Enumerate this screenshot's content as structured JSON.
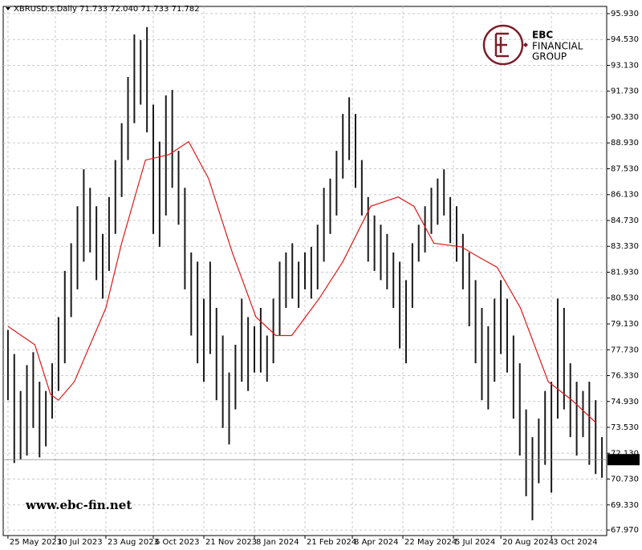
{
  "chart_data": {
    "type": "ohlc",
    "header": "XBRUSD.s.Daily  71.733 72.040 71.733 71.782",
    "bar_color": "#1a1a1a",
    "high": [
      78.8,
      77.5,
      75.5,
      76.9,
      77.6,
      76.0,
      75.5,
      77.0,
      79.5,
      82.0,
      83.5,
      85.5,
      87.5,
      86.5,
      85.5,
      84.0,
      86.0,
      88.0,
      90.0,
      92.5,
      94.8,
      94.5,
      95.2,
      91.0,
      89.0,
      91.5,
      91.8,
      88.5,
      86.5,
      83.0,
      82.5,
      80.5,
      82.5,
      80.0,
      78.5,
      76.5,
      78.0,
      80.5,
      79.5,
      79.0,
      80.0,
      78.5,
      80.5,
      82.5,
      83.0,
      83.5,
      82.5,
      83.0,
      83.3,
      84.5,
      86.5,
      87.0,
      88.5,
      90.5,
      91.4,
      90.5,
      88.0,
      86.0,
      85.0,
      84.5,
      84.0,
      83.0,
      82.5,
      81.5,
      83.5,
      84.5,
      85.5,
      86.5,
      87.0,
      87.5,
      86.0,
      85.5,
      84.0,
      83.0,
      81.5,
      80.0,
      79.0,
      80.5,
      81.5,
      80.5,
      78.5,
      77.0,
      74.5,
      73.0,
      74.0,
      75.5,
      76.0,
      80.5,
      80.0,
      77.0,
      76.0,
      75.5,
      76.0,
      75.0,
      73.0
    ],
    "low": [
      75.0,
      71.6,
      71.8,
      72.0,
      73.5,
      71.9,
      72.5,
      74.0,
      75.5,
      77.0,
      79.5,
      81.0,
      82.5,
      83.0,
      81.5,
      80.5,
      82.0,
      84.0,
      86.0,
      88.0,
      90.0,
      91.0,
      89.5,
      84.0,
      83.3,
      85.0,
      86.5,
      84.5,
      81.0,
      78.5,
      77.0,
      76.0,
      77.5,
      75.0,
      73.5,
      72.6,
      74.5,
      76.0,
      75.5,
      76.5,
      76.5,
      76.0,
      77.0,
      78.5,
      80.0,
      80.5,
      80.0,
      81.0,
      80.5,
      81.0,
      82.5,
      84.0,
      85.0,
      87.0,
      88.0,
      86.5,
      85.0,
      82.5,
      82.0,
      81.5,
      81.0,
      80.0,
      77.8,
      77.0,
      80.0,
      82.5,
      83.0,
      84.0,
      84.5,
      85.0,
      83.5,
      82.5,
      81.0,
      79.0,
      77.0,
      75.0,
      74.5,
      76.0,
      77.5,
      76.5,
      74.0,
      72.0,
      69.8,
      68.5,
      70.5,
      71.5,
      70.0,
      74.0,
      74.5,
      73.0,
      72.0,
      73.0,
      71.5,
      71.0,
      70.8
    ],
    "ma": {
      "color": "#e01818",
      "x": [
        0,
        4.25,
        6.75,
        8,
        10.5,
        15.5,
        18,
        21.75,
        25.5,
        28.6,
        31.75,
        35.5,
        39.25,
        42.4,
        44.9,
        49.25,
        53,
        57.4,
        61.75,
        64.25,
        67.4,
        71.75,
        74.25,
        77.4,
        81.1,
        85.5,
        89.25,
        93
      ],
      "values": [
        79.0,
        78.0,
        75.3,
        75.0,
        76.0,
        80.0,
        83.5,
        88.0,
        88.3,
        89.0,
        87.0,
        83.0,
        79.5,
        78.5,
        78.5,
        80.5,
        82.5,
        85.5,
        86.0,
        85.5,
        83.5,
        83.3,
        82.8,
        82.2,
        80.0,
        76.0,
        75.0,
        73.8
      ]
    },
    "last_price": 71.782,
    "xlim": [
      -0.75,
      94.75
    ],
    "ylim": [
      67.67,
      96.32
    ],
    "yticks": [
      {
        "value": 95.93,
        "label": "95.930"
      },
      {
        "value": 94.53,
        "label": "94.530"
      },
      {
        "value": 93.13,
        "label": "93.130"
      },
      {
        "value": 91.73,
        "label": "91.730"
      },
      {
        "value": 90.33,
        "label": "90.330"
      },
      {
        "value": 88.93,
        "label": "88.930"
      },
      {
        "value": 87.53,
        "label": "87.530"
      },
      {
        "value": 86.13,
        "label": "86.130"
      },
      {
        "value": 84.73,
        "label": "84.730"
      },
      {
        "value": 83.33,
        "label": "83.330"
      },
      {
        "value": 81.93,
        "label": "81.930"
      },
      {
        "value": 80.53,
        "label": "80.530"
      },
      {
        "value": 79.13,
        "label": "79.130"
      },
      {
        "value": 77.73,
        "label": "77.730"
      },
      {
        "value": 76.33,
        "label": "76.330"
      },
      {
        "value": 74.93,
        "label": "74.930"
      },
      {
        "value": 73.53,
        "label": "73.530"
      },
      {
        "value": 72.13,
        "label": "72.130"
      },
      {
        "value": 70.73,
        "label": "70.730"
      },
      {
        "value": 69.33,
        "label": "69.330"
      },
      {
        "value": 67.97,
        "label": "67.970"
      }
    ],
    "xticks": [
      {
        "value": 0,
        "label": "25 May 2023"
      },
      {
        "value": 7.5,
        "label": "10 Jul 2023"
      },
      {
        "value": 15.5,
        "label": "23 Aug 2023"
      },
      {
        "value": 23,
        "label": "6 Oct 2023"
      },
      {
        "value": 31,
        "label": "21 Nov 2023"
      },
      {
        "value": 39,
        "label": "8 Jan 2024"
      },
      {
        "value": 47,
        "label": "21 Feb 2024"
      },
      {
        "value": 54.5,
        "label": "8 Apr 2024"
      },
      {
        "value": 62.5,
        "label": "22 May 2024"
      },
      {
        "value": 70.5,
        "label": "5 Jul 2024"
      },
      {
        "value": 78,
        "label": "20 Aug 2024"
      },
      {
        "value": 86,
        "label": "3 Oct 2024"
      }
    ],
    "grid": true,
    "brand": {
      "name": "EBC",
      "line1": "FINANCIAL",
      "line2": "GROUP",
      "color": "#7a1f2b"
    },
    "watermark": "www.ebc-fin.net"
  }
}
